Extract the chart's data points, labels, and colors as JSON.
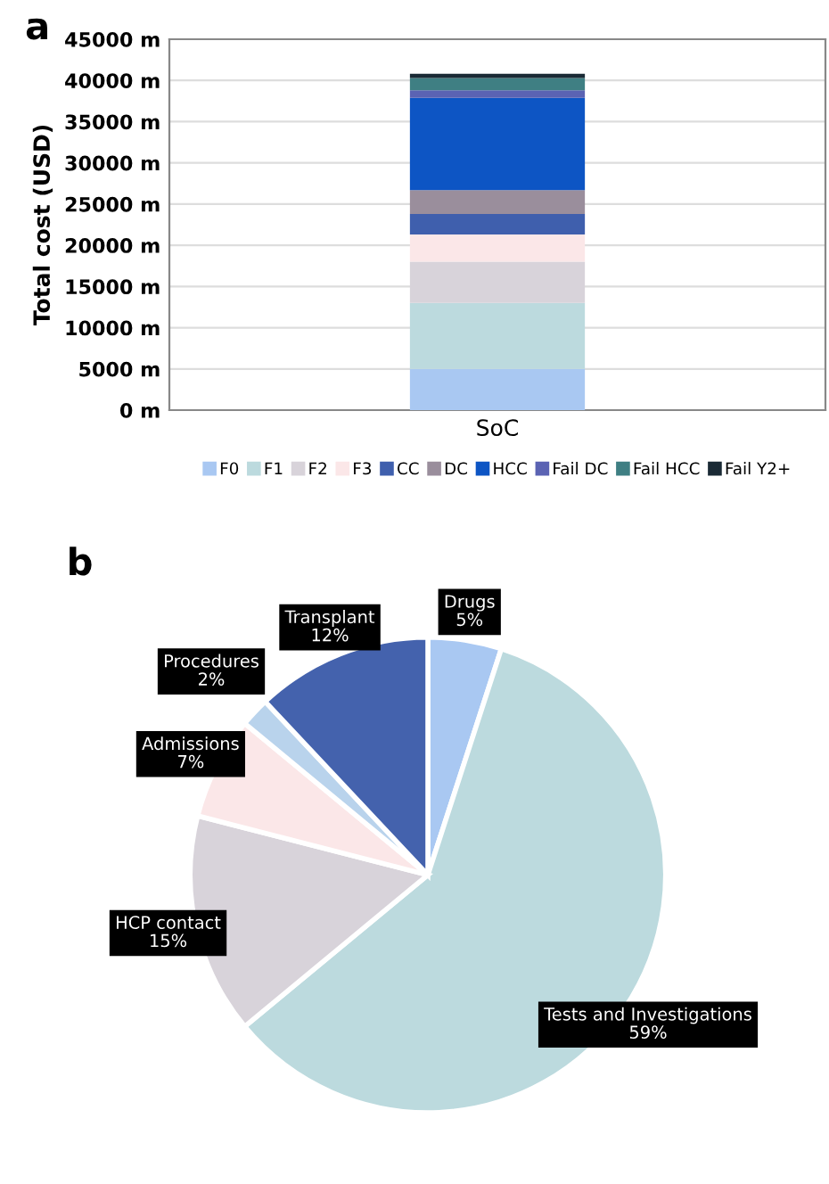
{
  "chart_data": [
    {
      "type": "bar",
      "title": "a",
      "ylabel": "Total cost (USD)",
      "categories": [
        "SoC"
      ],
      "stacked": true,
      "legend": "bottom",
      "grid": "y",
      "ylim": [
        0,
        45000
      ],
      "yticks": [
        {
          "value": 0,
          "label": "0 m"
        },
        {
          "value": 5000,
          "label": "5000 m"
        },
        {
          "value": 10000,
          "label": "10000 m"
        },
        {
          "value": 15000,
          "label": "15000 m"
        },
        {
          "value": 20000,
          "label": "20000 m"
        },
        {
          "value": 25000,
          "label": "25000 m"
        },
        {
          "value": 30000,
          "label": "30000 m"
        },
        {
          "value": 35000,
          "label": "35000 m"
        },
        {
          "value": 40000,
          "label": "40000 m"
        },
        {
          "value": 45000,
          "label": "45000 m"
        }
      ],
      "series": [
        {
          "name": "F0",
          "color": "#a9c8f2",
          "values": [
            5000
          ]
        },
        {
          "name": "F1",
          "color": "#bcdade",
          "values": [
            8000
          ]
        },
        {
          "name": "F2",
          "color": "#d8d3da",
          "values": [
            5000
          ]
        },
        {
          "name": "F3",
          "color": "#fbe7e8",
          "values": [
            3300
          ]
        },
        {
          "name": "CC",
          "color": "#3f5fad",
          "values": [
            2500
          ]
        },
        {
          "name": "DC",
          "color": "#9a8e9c",
          "values": [
            2900
          ]
        },
        {
          "name": "HCC",
          "color": "#0d55c4",
          "values": [
            11200
          ]
        },
        {
          "name": "Fail DC",
          "color": "#5b63b3",
          "values": [
            900
          ]
        },
        {
          "name": "Fail HCC",
          "color": "#3f7f83",
          "values": [
            1500
          ]
        },
        {
          "name": "Fail Y2+",
          "color": "#1a2a35",
          "values": [
            500
          ]
        }
      ]
    },
    {
      "type": "pie",
      "title": "b",
      "categories": [
        "Drugs",
        "Tests and Investigations",
        "HCP contact",
        "Admissions",
        "Procedures",
        "Transplant"
      ],
      "values": [
        5,
        59,
        15,
        7,
        2,
        12
      ],
      "value_labels": [
        "5%",
        "59%",
        "15%",
        "7%",
        "2%",
        "12%"
      ],
      "colors": [
        "#a9c8f2",
        "#bcdade",
        "#d8d3da",
        "#fbe7e8",
        "#b9d3ec",
        "#4462ad"
      ]
    }
  ]
}
